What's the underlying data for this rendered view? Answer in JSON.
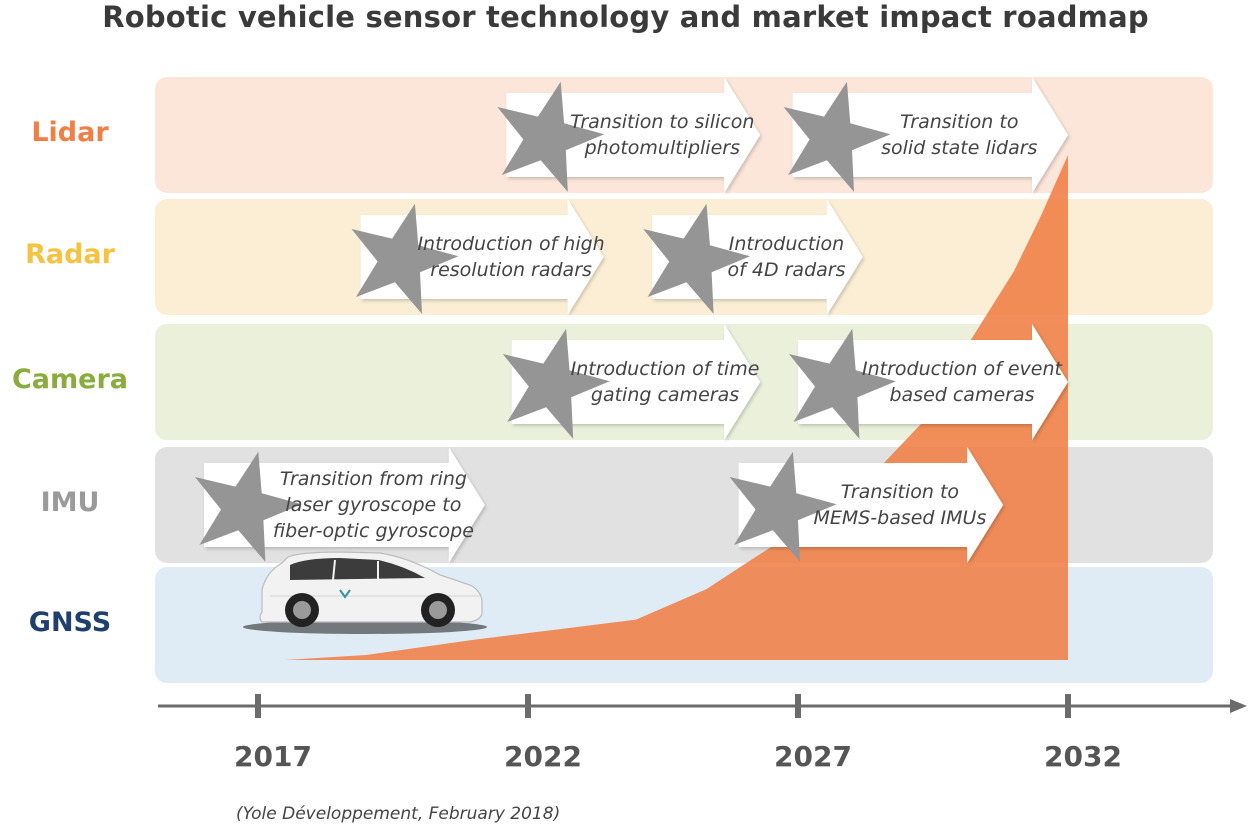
{
  "title": "Robotic vehicle sensor technology and market impact roadmap",
  "source": "(Yole Développement, February 2018)",
  "colors": {
    "lidar": "#f07e45",
    "lidar_band": "#fce5d9",
    "radar": "#f5c242",
    "radar_band": "#fbeed5",
    "camera": "#8aac3f",
    "camera_band": "#ebf0db",
    "imu": "#9a9a9a",
    "imu_band": "#e1e1e1",
    "gnss": "#1f3f6c",
    "gnss_band": "#dfecf6",
    "star": "#959595",
    "market": "#f07e45",
    "axis": "#6b6b6b"
  },
  "rows": [
    {
      "key": "lidar",
      "label": "Lidar"
    },
    {
      "key": "radar",
      "label": "Radar"
    },
    {
      "key": "camera",
      "label": "Camera"
    },
    {
      "key": "imu",
      "label": "IMU"
    },
    {
      "key": "gnss",
      "label": "GNSS"
    }
  ],
  "years": [
    "2017",
    "2022",
    "2027",
    "2032"
  ],
  "milestones": [
    {
      "row": "lidar",
      "start_year": 2021.6,
      "end_year": 2026.3,
      "lines": [
        "Transition to silicon",
        "photomultipliers"
      ]
    },
    {
      "row": "lidar",
      "start_year": 2026.9,
      "end_year": 2032.0,
      "lines": [
        "Transition to",
        "solid state lidars"
      ]
    },
    {
      "row": "radar",
      "start_year": 2018.9,
      "end_year": 2023.4,
      "lines": [
        "Introduction of high",
        "resolution radars"
      ]
    },
    {
      "row": "radar",
      "start_year": 2024.3,
      "end_year": 2028.2,
      "lines": [
        "Introduction",
        "of 4D radars"
      ]
    },
    {
      "row": "camera",
      "start_year": 2021.7,
      "end_year": 2026.3,
      "lines": [
        "Introduction of time",
        "gating cameras"
      ]
    },
    {
      "row": "camera",
      "start_year": 2027.0,
      "end_year": 2032.0,
      "lines": [
        "Introduction of event",
        "based cameras"
      ]
    },
    {
      "row": "imu",
      "start_year": 2016.0,
      "end_year": 2021.2,
      "lines": [
        "Transition from ring",
        "laser gyroscope to",
        "fiber-optic gyroscope"
      ]
    },
    {
      "row": "imu",
      "start_year": 2025.9,
      "end_year": 2030.8,
      "lines": [
        "Transition to",
        "MEMS-based IMUs"
      ]
    }
  ],
  "market_curve": [
    {
      "year": 2015.6,
      "level": 0.0
    },
    {
      "year": 2017.5,
      "level": 0.0
    },
    {
      "year": 2019.0,
      "level": 0.01
    },
    {
      "year": 2021.0,
      "level": 0.04
    },
    {
      "year": 2022.5,
      "level": 0.06
    },
    {
      "year": 2024.0,
      "level": 0.08
    },
    {
      "year": 2025.3,
      "level": 0.14
    },
    {
      "year": 2026.3,
      "level": 0.21
    },
    {
      "year": 2027.5,
      "level": 0.29
    },
    {
      "year": 2028.5,
      "level": 0.38
    },
    {
      "year": 2029.3,
      "level": 0.47
    },
    {
      "year": 2030.0,
      "level": 0.6
    },
    {
      "year": 2031.0,
      "level": 0.77
    },
    {
      "year": 2031.5,
      "level": 0.88
    },
    {
      "year": 2032.0,
      "level": 1.0
    }
  ],
  "car_image": "robotic minivan"
}
